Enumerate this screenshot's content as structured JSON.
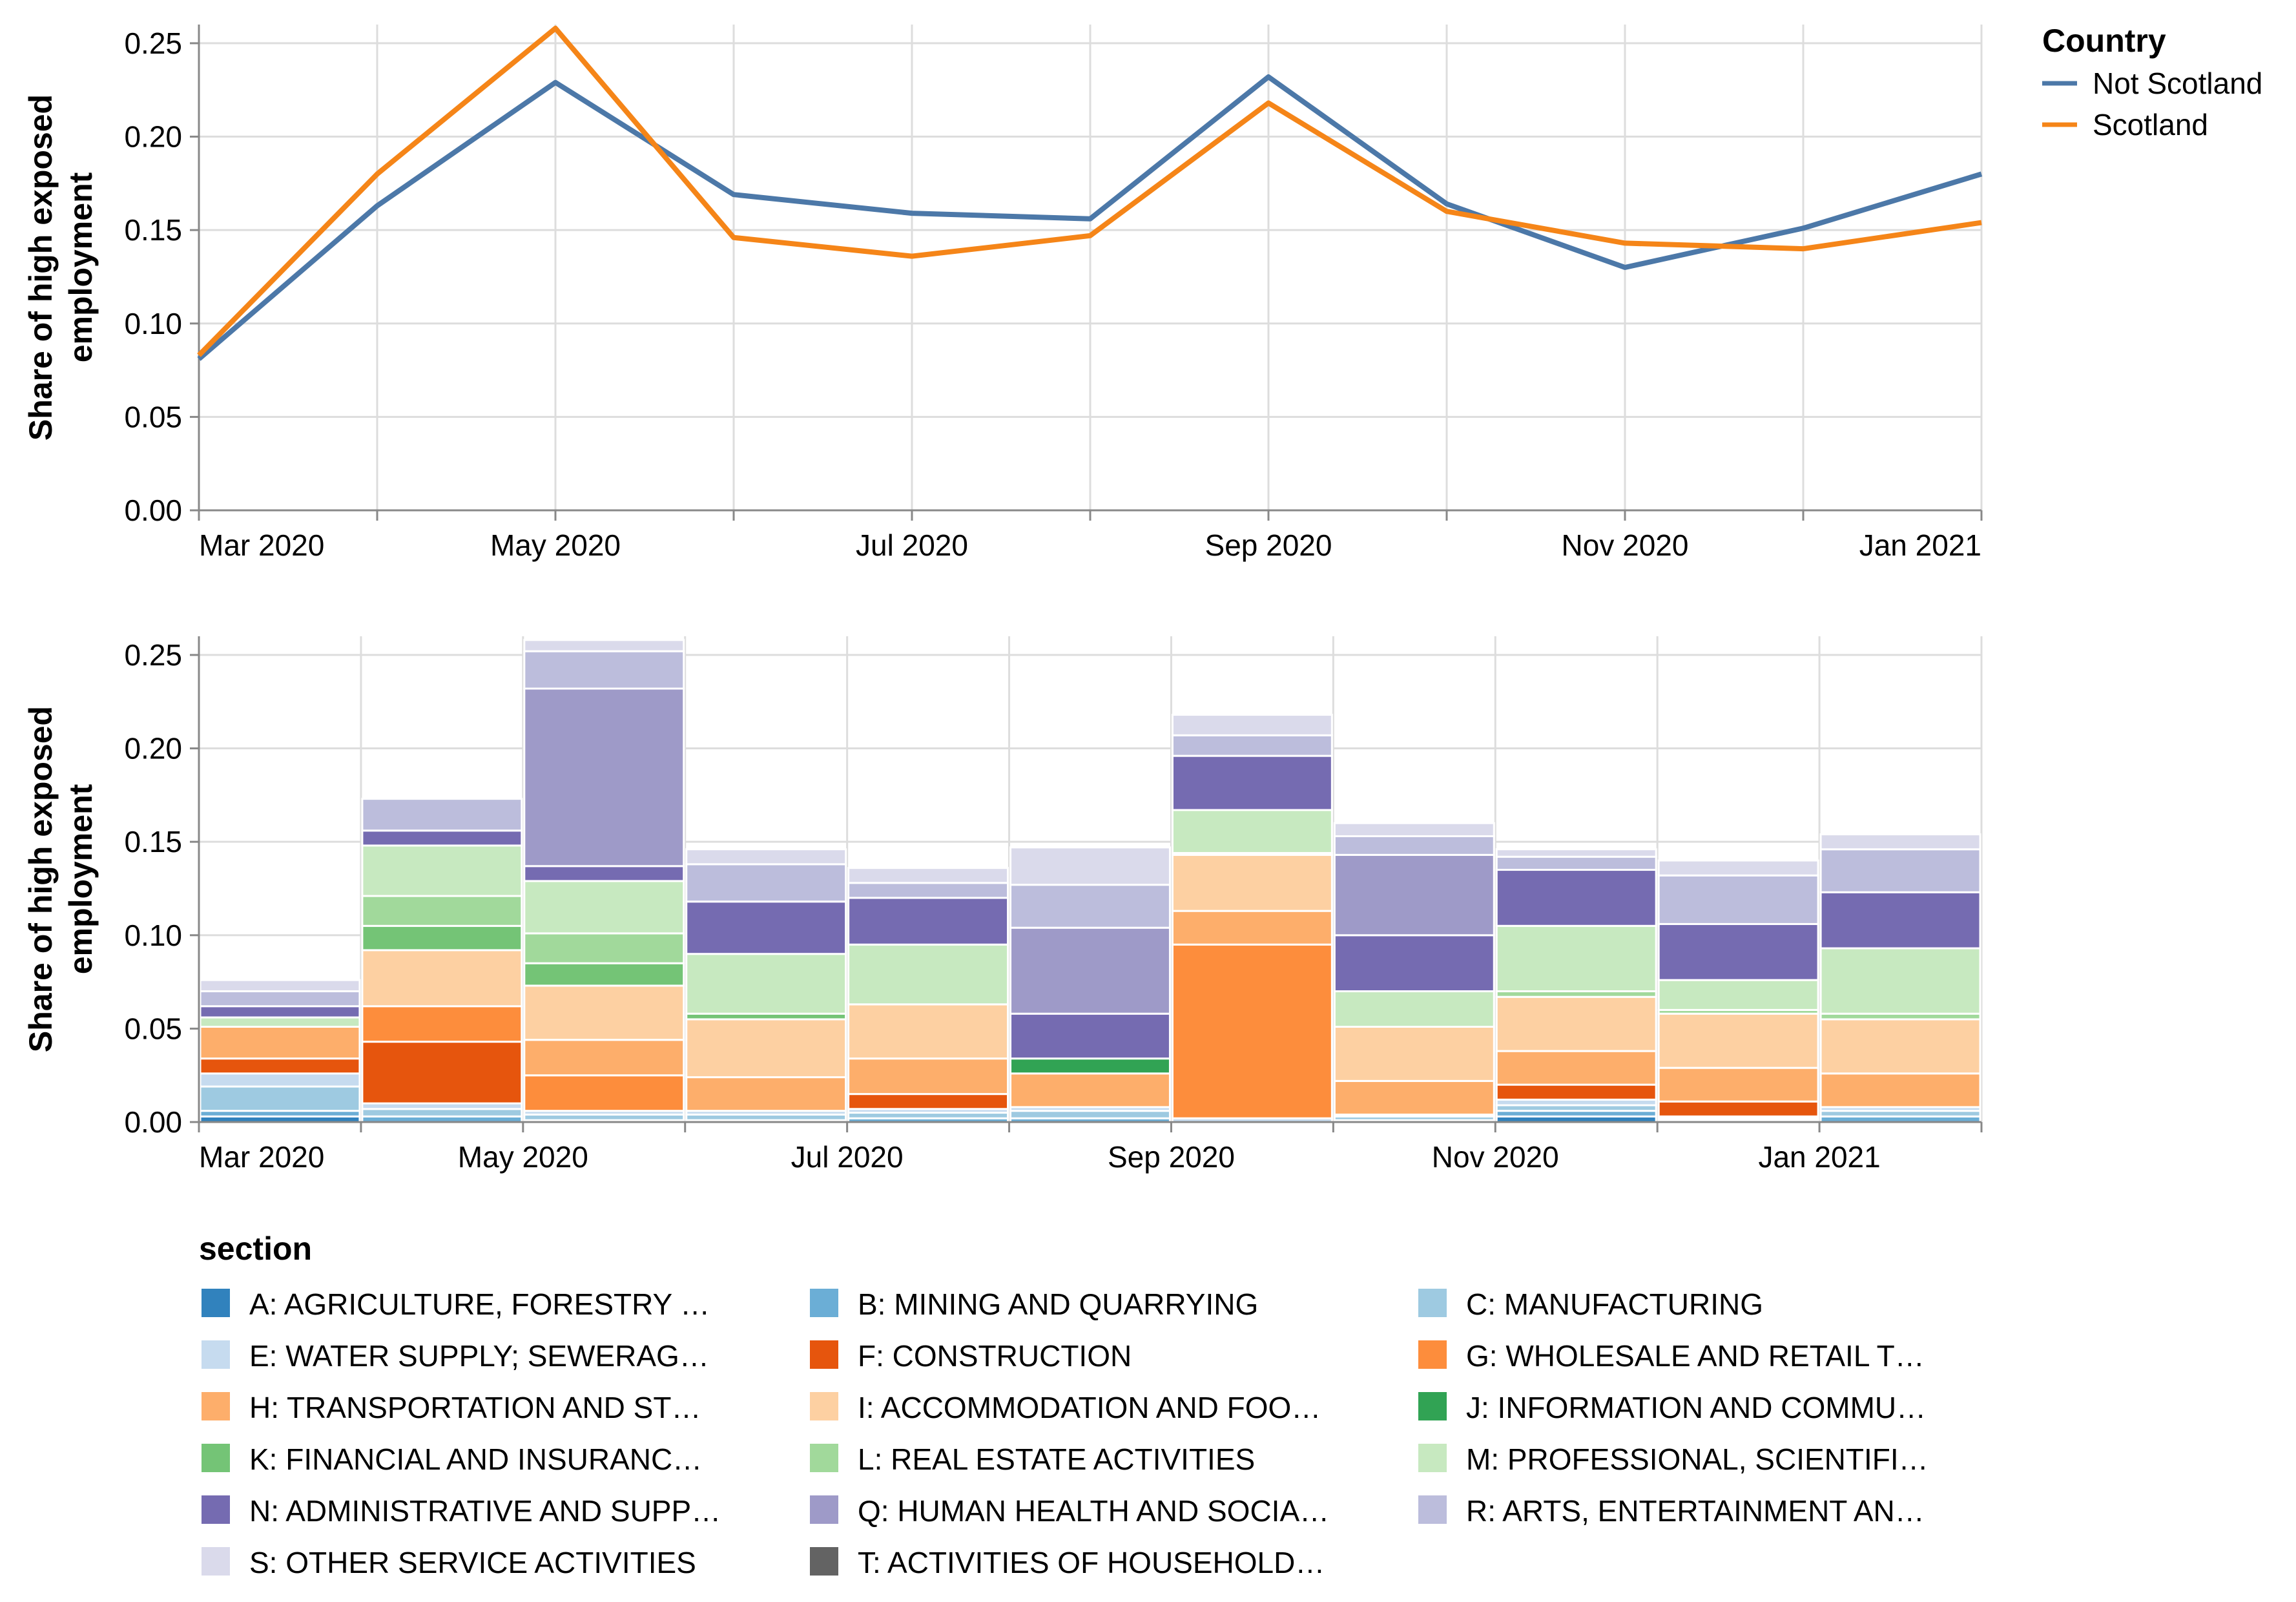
{
  "chart_data": [
    {
      "type": "line",
      "ylabel_lines": [
        "Share of high exposed",
        "employment"
      ],
      "ylim": [
        0,
        0.26
      ],
      "yticks": [
        "0.00",
        "0.05",
        "0.10",
        "0.15",
        "0.20",
        "0.25"
      ],
      "x": [
        "2020-03",
        "2020-04",
        "2020-05",
        "2020-06",
        "2020-07",
        "2020-08",
        "2020-09",
        "2020-10",
        "2020-11",
        "2020-12",
        "2021-01"
      ],
      "xtick_labels": [
        "Mar 2020",
        "May 2020",
        "Jul 2020",
        "Sep 2020",
        "Nov 2020",
        "Jan 2021"
      ],
      "grid": true,
      "legend": {
        "title": "Country",
        "placement": "right"
      },
      "series": [
        {
          "name": "Not Scotland",
          "color": "#4c78a8",
          "values": [
            0.081,
            0.163,
            0.229,
            0.169,
            0.159,
            0.156,
            0.232,
            0.164,
            0.13,
            0.151,
            0.18
          ]
        },
        {
          "name": "Scotland",
          "color": "#f58518",
          "values": [
            0.083,
            0.18,
            0.258,
            0.146,
            0.136,
            0.147,
            0.218,
            0.16,
            0.143,
            0.14,
            0.154
          ]
        }
      ]
    },
    {
      "type": "bar",
      "stacked": true,
      "ylabel_lines": [
        "Share of high exposed",
        "employment"
      ],
      "ylim": [
        0,
        0.26
      ],
      "yticks": [
        "0.00",
        "0.05",
        "0.10",
        "0.15",
        "0.20",
        "0.25"
      ],
      "categories": [
        "2020-03",
        "2020-04",
        "2020-05",
        "2020-06",
        "2020-07",
        "2020-08",
        "2020-09",
        "2020-10",
        "2020-11",
        "2020-12",
        "2021-01"
      ],
      "xtick_labels": [
        "Mar 2020",
        "May 2020",
        "Jul 2020",
        "Sep 2020",
        "Nov 2020",
        "Jan 2021"
      ],
      "grid": true,
      "legend": {
        "title": "section",
        "placement": "bottom"
      },
      "series": [
        {
          "name": "A: AGRICULTURE, FORESTRY …",
          "color": "#3182bd",
          "values": [
            0.003,
            0.0,
            0.0,
            0.0,
            0.0,
            0.0,
            0.0,
            0.0,
            0.003,
            0.001,
            0.0
          ]
        },
        {
          "name": "B: MINING AND QUARRYING",
          "color": "#6baed6",
          "values": [
            0.003,
            0.003,
            0.001,
            0.001,
            0.002,
            0.002,
            0.0,
            0.001,
            0.003,
            0.001,
            0.003
          ]
        },
        {
          "name": "C: MANUFACTURING",
          "color": "#9ecae1",
          "values": [
            0.013,
            0.004,
            0.003,
            0.003,
            0.003,
            0.004,
            0.0,
            0.002,
            0.003,
            0.0,
            0.003
          ]
        },
        {
          "name": "E: WATER SUPPLY; SEWERAG…",
          "color": "#c6dbef",
          "values": [
            0.007,
            0.003,
            0.002,
            0.002,
            0.002,
            0.002,
            0.002,
            0.001,
            0.003,
            0.001,
            0.002
          ]
        },
        {
          "name": "F: CONSTRUCTION",
          "color": "#e6550d",
          "values": [
            0.008,
            0.033,
            0.0,
            0.0,
            0.008,
            0.0,
            0.0,
            0.0,
            0.008,
            0.008,
            0.0
          ]
        },
        {
          "name": "G: WHOLESALE AND RETAIL T…",
          "color": "#fd8d3c",
          "values": [
            0.0,
            0.019,
            0.019,
            0.0,
            0.0,
            0.0,
            0.093,
            0.0,
            0.0,
            0.0,
            0.0
          ]
        },
        {
          "name": "H: TRANSPORTATION AND ST…",
          "color": "#fdae6b",
          "values": [
            0.017,
            0.0,
            0.019,
            0.018,
            0.019,
            0.018,
            0.018,
            0.018,
            0.018,
            0.018,
            0.018
          ]
        },
        {
          "name": "I: ACCOMMODATION AND FOO…",
          "color": "#fdd0a2",
          "values": [
            0.0,
            0.03,
            0.029,
            0.031,
            0.029,
            0.0,
            0.03,
            0.029,
            0.029,
            0.029,
            0.029
          ]
        },
        {
          "name": "J: INFORMATION AND COMMU…",
          "color": "#31a354",
          "values": [
            0.0,
            0.0,
            0.0,
            0.0,
            0.0,
            0.008,
            0.001,
            0.0,
            0.0,
            0.0,
            0.0
          ]
        },
        {
          "name": "K: FINANCIAL AND INSURANC…",
          "color": "#74c476",
          "values": [
            0.0,
            0.013,
            0.012,
            0.003,
            0.0,
            0.0,
            0.0,
            0.0,
            0.0,
            0.0,
            0.0
          ]
        },
        {
          "name": "L: REAL ESTATE ACTIVITIES",
          "color": "#a1d99b",
          "values": [
            0.0,
            0.016,
            0.016,
            0.0,
            0.0,
            0.0,
            0.0,
            0.0,
            0.003,
            0.002,
            0.003
          ]
        },
        {
          "name": "M: PROFESSIONAL, SCIENTIFI…",
          "color": "#c7e9c0",
          "values": [
            0.005,
            0.027,
            0.028,
            0.032,
            0.032,
            0.0,
            0.023,
            0.019,
            0.035,
            0.016,
            0.035
          ]
        },
        {
          "name": "N: ADMINISTRATIVE AND SUPP…",
          "color": "#756bb1",
          "values": [
            0.006,
            0.008,
            0.008,
            0.028,
            0.025,
            0.024,
            0.029,
            0.03,
            0.03,
            0.03,
            0.03
          ]
        },
        {
          "name": "Q: HUMAN HEALTH AND SOCIA…",
          "color": "#9e9ac8",
          "values": [
            0.0,
            0.0,
            0.095,
            0.0,
            0.0,
            0.046,
            0.0,
            0.043,
            0.0,
            0.0,
            0.0
          ]
        },
        {
          "name": "R: ARTS, ENTERTAINMENT AN…",
          "color": "#bcbddc",
          "values": [
            0.008,
            0.017,
            0.02,
            0.02,
            0.008,
            0.023,
            0.011,
            0.01,
            0.007,
            0.026,
            0.023
          ]
        },
        {
          "name": "S: OTHER SERVICE ACTIVITIES",
          "color": "#dadaeb",
          "values": [
            0.006,
            0.0,
            0.006,
            0.008,
            0.008,
            0.02,
            0.011,
            0.007,
            0.004,
            0.008,
            0.008
          ]
        },
        {
          "name": "T: ACTIVITIES OF HOUSEHOLD…",
          "color": "#636363",
          "values": [
            0.0,
            0.0,
            0.0,
            0.0,
            0.0,
            0.0,
            0.0,
            0.0,
            0.0,
            0.0,
            0.0
          ]
        }
      ]
    }
  ]
}
